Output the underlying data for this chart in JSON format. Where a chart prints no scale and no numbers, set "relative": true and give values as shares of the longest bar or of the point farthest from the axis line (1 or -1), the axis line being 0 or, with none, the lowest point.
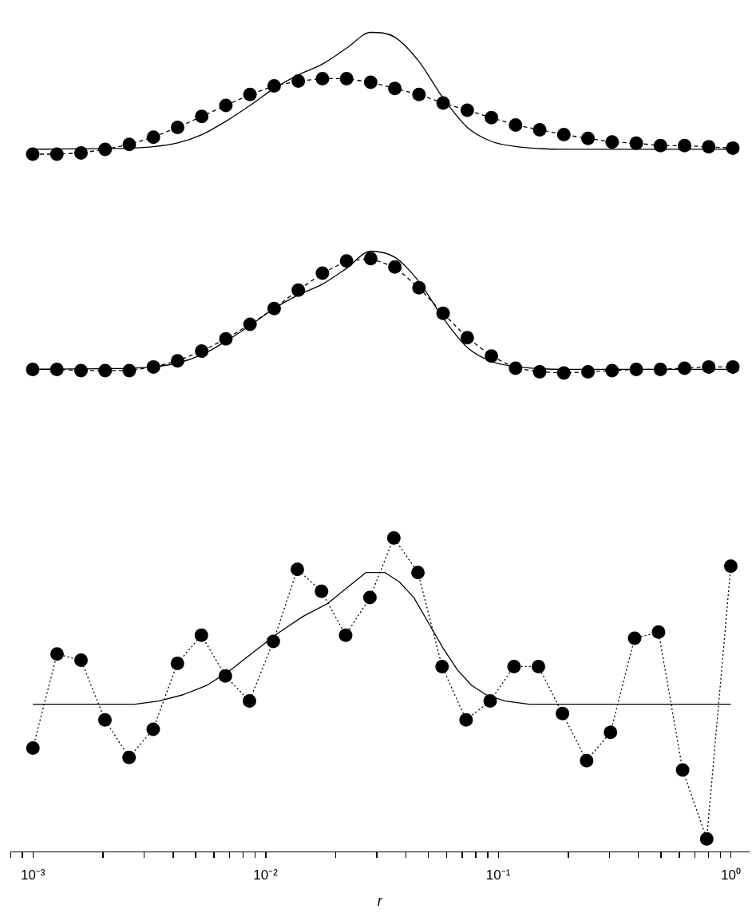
{
  "chart_data": [
    {
      "type": "line",
      "relative": true,
      "tick_labels": false,
      "categories": [
        null,
        null,
        null,
        null,
        null,
        null,
        null,
        null,
        null,
        null,
        null,
        null,
        null,
        null,
        null,
        null,
        null,
        null,
        null,
        null,
        null,
        null,
        null,
        null,
        null,
        null,
        null,
        null,
        null,
        null
      ],
      "series": [
        {
          "type": "line",
          "color": "#000000",
          "marker": "none",
          "line_style": "solid",
          "values": [
            0.04,
            0.042,
            0.044,
            0.046,
            0.049,
            0.061,
            0.092,
            0.16,
            0.27,
            0.4,
            0.54,
            0.65,
            0.74,
            0.87,
            1,
            0.96,
            0.76,
            0.46,
            0.22,
            0.105,
            0.063,
            0.046,
            0.04,
            0.04,
            0.04,
            0.04,
            0.04,
            0.04,
            0.04,
            0.04
          ]
        },
        {
          "type": "line",
          "color": "#000000",
          "marker": "circle",
          "line_style": "dashed",
          "values": [
            0,
            0,
            0.01,
            0.04,
            0.08,
            0.14,
            0.22,
            0.31,
            0.4,
            0.49,
            0.56,
            0.6,
            0.62,
            0.62,
            0.59,
            0.54,
            0.49,
            0.42,
            0.36,
            0.3,
            0.24,
            0.2,
            0.16,
            0.13,
            0.1,
            0.09,
            0.07,
            0.07,
            0.06,
            0.05
          ]
        }
      ]
    },
    {
      "type": "line",
      "relative": true,
      "tick_labels": false,
      "categories": [
        null,
        null,
        null,
        null,
        null,
        null,
        null,
        null,
        null,
        null,
        null,
        null,
        null,
        null,
        null,
        null,
        null,
        null,
        null,
        null,
        null,
        null,
        null,
        null,
        null,
        null,
        null,
        null,
        null,
        null
      ],
      "series": [
        {
          "type": "line",
          "color": "#000000",
          "marker": "none",
          "line_style": "solid",
          "values": [
            0.03,
            0.032,
            0.034,
            0.036,
            0.039,
            0.051,
            0.082,
            0.15,
            0.26,
            0.39,
            0.53,
            0.64,
            0.73,
            0.86,
            1,
            0.95,
            0.75,
            0.45,
            0.21,
            0.095,
            0.053,
            0.036,
            0.03,
            0.03,
            0.03,
            0.03,
            0.03,
            0.03,
            0.03,
            0.03
          ]
        },
        {
          "type": "line",
          "color": "#000000",
          "marker": "circle",
          "line_style": "dashed",
          "values": [
            0.03,
            0.03,
            0.02,
            0.02,
            0.02,
            0.05,
            0.1,
            0.18,
            0.28,
            0.4,
            0.53,
            0.68,
            0.82,
            0.92,
            0.94,
            0.87,
            0.7,
            0.49,
            0.29,
            0.14,
            0.04,
            0.01,
            0,
            0.01,
            0.02,
            0.03,
            0.03,
            0.04,
            0.05,
            0.05
          ]
        }
      ]
    },
    {
      "type": "line",
      "relative": true,
      "log": "x",
      "tick_labels": "x",
      "xlabel": "r",
      "xlim": [
        0.0008,
        1.2
      ],
      "xticks": [
        {
          "value": 0.0008,
          "label": null
        },
        {
          "value": 0.0009,
          "label": null
        },
        {
          "value": 0.001,
          "label": "10⁻³"
        },
        {
          "value": 0.002,
          "label": null
        },
        {
          "value": 0.003,
          "label": null
        },
        {
          "value": 0.004,
          "label": null
        },
        {
          "value": 0.005,
          "label": null
        },
        {
          "value": 0.006,
          "label": null
        },
        {
          "value": 0.007,
          "label": null
        },
        {
          "value": 0.008,
          "label": null
        },
        {
          "value": 0.009,
          "label": null
        },
        {
          "value": 0.01,
          "label": "10⁻²"
        },
        {
          "value": 0.02,
          "label": null
        },
        {
          "value": 0.03,
          "label": null
        },
        {
          "value": 0.04,
          "label": null
        },
        {
          "value": 0.05,
          "label": null
        },
        {
          "value": 0.06,
          "label": null
        },
        {
          "value": 0.07,
          "label": null
        },
        {
          "value": 0.08,
          "label": null
        },
        {
          "value": 0.09,
          "label": null
        },
        {
          "value": 0.1,
          "label": "10⁻¹"
        },
        {
          "value": 0.2,
          "label": null
        },
        {
          "value": 0.3,
          "label": null
        },
        {
          "value": 0.4,
          "label": null
        },
        {
          "value": 0.5,
          "label": null
        },
        {
          "value": 0.6,
          "label": null
        },
        {
          "value": 0.7,
          "label": null
        },
        {
          "value": 0.8,
          "label": null
        },
        {
          "value": 0.9,
          "label": null
        },
        {
          "value": 1,
          "label": "10⁰"
        }
      ],
      "x": [
        0.001,
        0.00127,
        0.00161,
        0.00204,
        0.00259,
        0.00329,
        0.00418,
        0.0053,
        0.00672,
        0.00853,
        0.0108,
        0.0137,
        0.0174,
        0.0221,
        0.0281,
        0.0356,
        0.0452,
        0.0574,
        0.0728,
        0.0924,
        0.117,
        0.149,
        0.189,
        0.24,
        0.304,
        0.386,
        0.489,
        0.621,
        0.788,
        1
      ],
      "series": [
        {
          "type": "line",
          "color": "#000000",
          "marker": "none",
          "line_style": "solid",
          "x": [
            0.001,
            0.00187,
            0.00274,
            0.00348,
            0.00442,
            0.0056,
            0.00711,
            0.00902,
            0.0115,
            0.0145,
            0.0184,
            0.0223,
            0.027,
            0.0297,
            0.0326,
            0.0376,
            0.0434,
            0.0501,
            0.0578,
            0.0667,
            0.0769,
            0.0887,
            0.107,
            0.136,
            0.173,
            1
          ],
          "values": [
            0.47,
            0.47,
            0.47,
            0.48,
            0.5,
            0.53,
            0.58,
            0.64,
            0.7,
            0.75,
            0.79,
            0.84,
            0.89,
            0.89,
            0.89,
            0.86,
            0.81,
            0.73,
            0.65,
            0.58,
            0.53,
            0.5,
            0.48,
            0.47,
            0.47,
            0.47
          ]
        },
        {
          "type": "line",
          "color": "#000000",
          "marker": "circle",
          "line_style": "dotted",
          "values": [
            0.33,
            0.63,
            0.61,
            0.42,
            0.3,
            0.39,
            0.6,
            0.69,
            0.56,
            0.48,
            0.67,
            0.9,
            0.83,
            0.69,
            0.81,
            1,
            0.89,
            0.59,
            0.42,
            0.48,
            0.59,
            0.59,
            0.44,
            0.29,
            0.38,
            0.68,
            0.7,
            0.26,
            0.04,
            0.91
          ]
        }
      ]
    }
  ]
}
